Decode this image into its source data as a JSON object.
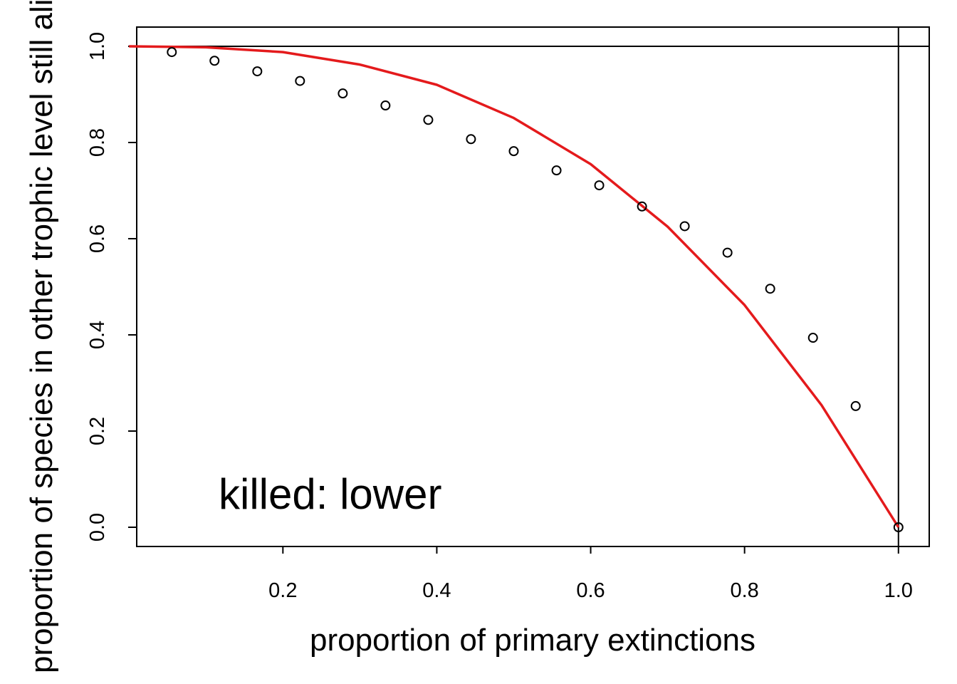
{
  "chart_data": {
    "type": "scatter",
    "xlabel": "proportion of primary extinctions",
    "ylabel": "proportion of species in other trophic level still alive",
    "annotation": "killed:  lower",
    "xlim": [
      0.01,
      1.04
    ],
    "ylim": [
      -0.04,
      1.04
    ],
    "x_ticks": [
      {
        "value": 0.2,
        "label": "0.2"
      },
      {
        "value": 0.4,
        "label": "0.4"
      },
      {
        "value": 0.6,
        "label": "0.6"
      },
      {
        "value": 0.8,
        "label": "0.8"
      },
      {
        "value": 1.0,
        "label": "1.0"
      }
    ],
    "y_ticks": [
      {
        "value": 0.0,
        "label": "0.0"
      },
      {
        "value": 0.2,
        "label": "0.2"
      },
      {
        "value": 0.4,
        "label": "0.4"
      },
      {
        "value": 0.6,
        "label": "0.6"
      },
      {
        "value": 0.8,
        "label": "0.8"
      },
      {
        "value": 1.0,
        "label": "1.0"
      }
    ],
    "reference_lines": {
      "x": 1.0,
      "y": 1.0
    },
    "grid": false,
    "series": [
      {
        "type": "scatter",
        "marker": "open-circle",
        "color": "#000000",
        "x": [
          0.0556,
          0.1111,
          0.1667,
          0.2222,
          0.2778,
          0.3333,
          0.3889,
          0.4444,
          0.5,
          0.5556,
          0.6111,
          0.6667,
          0.7222,
          0.7778,
          0.8333,
          0.8889,
          0.9444,
          1.0
        ],
        "y": [
          0.988,
          0.97,
          0.948,
          0.928,
          0.902,
          0.877,
          0.847,
          0.807,
          0.782,
          0.742,
          0.711,
          0.667,
          0.626,
          0.571,
          0.496,
          0.394,
          0.252,
          0.0
        ]
      },
      {
        "type": "line",
        "color": "#e41a1c",
        "x": [
          0.0,
          0.1,
          0.2,
          0.3,
          0.4,
          0.5,
          0.6,
          0.7,
          0.8,
          0.9,
          1.0
        ],
        "y": [
          1.0,
          0.998,
          0.988,
          0.962,
          0.92,
          0.851,
          0.755,
          0.625,
          0.462,
          0.254,
          0.0
        ]
      }
    ]
  }
}
